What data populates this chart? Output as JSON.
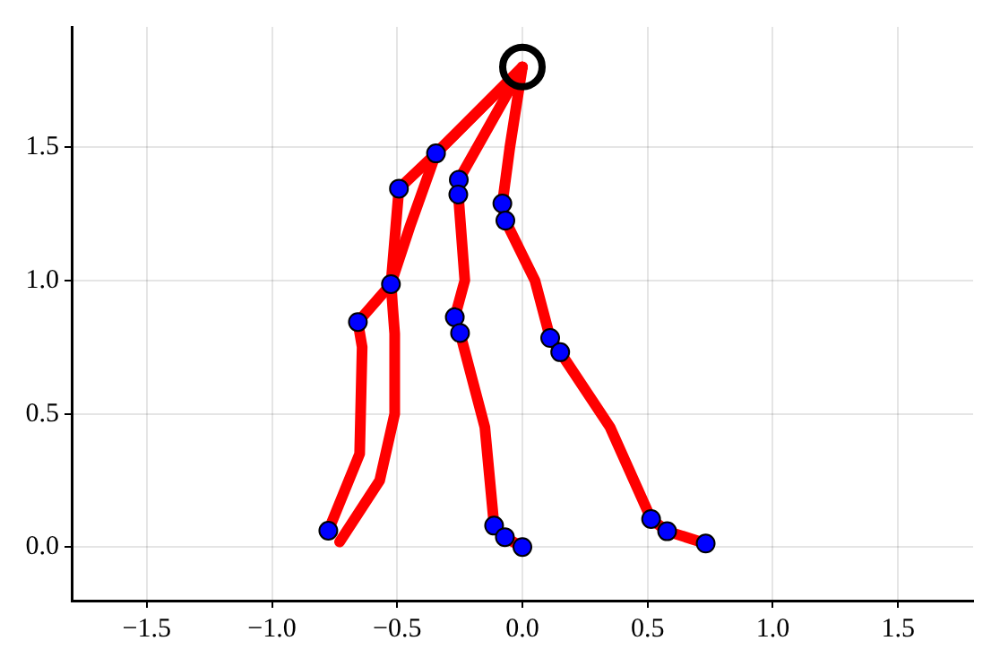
{
  "chart_data": {
    "type": "scatter",
    "xlim": [
      -1.8,
      1.8
    ],
    "ylim": [
      -0.2,
      1.95
    ],
    "xticks": [
      {
        "value": -1.5,
        "label": "−1.5"
      },
      {
        "value": -1.0,
        "label": "−1.0"
      },
      {
        "value": -0.5,
        "label": "−0.5"
      },
      {
        "value": 0,
        "label": "0.0"
      },
      {
        "value": 0.5,
        "label": "0.5"
      },
      {
        "value": 1.0,
        "label": "1.0"
      },
      {
        "value": 1.5,
        "label": "1.5"
      }
    ],
    "yticks": [
      {
        "value": 0,
        "label": "0.0"
      },
      {
        "value": 0.5,
        "label": "0.5"
      },
      {
        "value": 1.0,
        "label": "1.0"
      },
      {
        "value": 1.5,
        "label": "1.5"
      }
    ],
    "grid": true,
    "legend": false,
    "series": [
      {
        "type": "line",
        "color": "#ff0000",
        "marker": "none",
        "x": [
          0,
          -0.345,
          -0.493,
          -0.525,
          -0.657,
          -0.64,
          -0.65,
          -0.775
        ],
        "values": [
          1.8,
          1.476,
          1.344,
          0.986,
          0.844,
          0.75,
          0.35,
          0.062
        ]
      },
      {
        "type": "line",
        "color": "#ff0000",
        "marker": "none",
        "x": [
          0,
          -0.345,
          -0.45,
          -0.525,
          -0.51,
          -0.51,
          -0.57,
          -0.73
        ],
        "values": [
          1.8,
          1.476,
          1.2,
          0.986,
          0.8,
          0.5,
          0.25,
          0.02
        ]
      },
      {
        "type": "line",
        "color": "#ff0000",
        "marker": "none",
        "x": [
          0,
          -0.15,
          -0.254,
          -0.256,
          -0.23,
          -0.27,
          -0.249,
          -0.15,
          -0.113,
          -0.07,
          0
        ],
        "values": [
          1.8,
          1.55,
          1.377,
          1.322,
          1.0,
          0.862,
          0.803,
          0.45,
          0.081,
          0.038,
          0.001
        ]
      },
      {
        "type": "line",
        "color": "#ff0000",
        "marker": "none",
        "x": [
          0,
          -0.05,
          -0.08,
          -0.068,
          0.05,
          0.111,
          0.151,
          0.35,
          0.514,
          0.578,
          0.732
        ],
        "values": [
          1.8,
          1.5,
          1.288,
          1.224,
          1.0,
          0.784,
          0.731,
          0.45,
          0.106,
          0.06,
          0.014
        ]
      },
      {
        "type": "scatter",
        "color": "#0000ff",
        "marker": "circle",
        "x": [
          -0.345,
          -0.493,
          -0.254,
          -0.256,
          -0.08,
          -0.068,
          -0.525,
          -0.657,
          -0.27,
          -0.249,
          0.111,
          0.151,
          -0.775,
          -0.113,
          -0.07,
          0,
          0.514,
          0.578,
          0.732
        ],
        "values": [
          1.476,
          1.344,
          1.377,
          1.322,
          1.288,
          1.224,
          0.986,
          0.844,
          0.862,
          0.803,
          0.784,
          0.731,
          0.062,
          0.081,
          0.038,
          0.001,
          0.106,
          0.06,
          0.014
        ]
      },
      {
        "type": "bubble",
        "color": "#000000",
        "x": [
          0
        ],
        "values": [
          1.8
        ],
        "sizes": [
          1
        ]
      }
    ]
  }
}
